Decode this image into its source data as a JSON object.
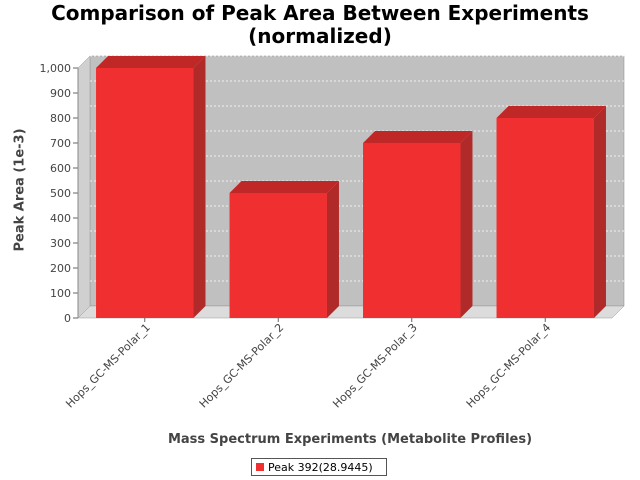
{
  "chart_data": {
    "type": "bar",
    "title": "Comparison of Peak Area Between Experiments (normalized)",
    "xlabel": "Mass Spectrum Experiments (Metabolite Profiles)",
    "ylabel": "Peak Area (1e-3)",
    "categories": [
      "Hops_GC-MS-Polar_1",
      "Hops_GC-MS-Polar_2",
      "Hops_GC-MS-Polar_3",
      "Hops_GC-MS-Polar_4"
    ],
    "series": [
      {
        "name": "Peak 392(28.9445)",
        "values": [
          1000,
          500,
          700,
          800
        ]
      }
    ],
    "ylim": [
      0,
      1000
    ],
    "yticks": [
      "0",
      "100",
      "200",
      "300",
      "400",
      "500",
      "600",
      "700",
      "800",
      "900",
      "1,000"
    ],
    "grid": true,
    "legend_position": "bottom",
    "colors": {
      "bar_face": "#f03030",
      "bar_top": "#c02828",
      "bar_side": "#b02a2a",
      "plot_bg": "#c0c0c0",
      "floor": "#dcdcdc"
    }
  }
}
